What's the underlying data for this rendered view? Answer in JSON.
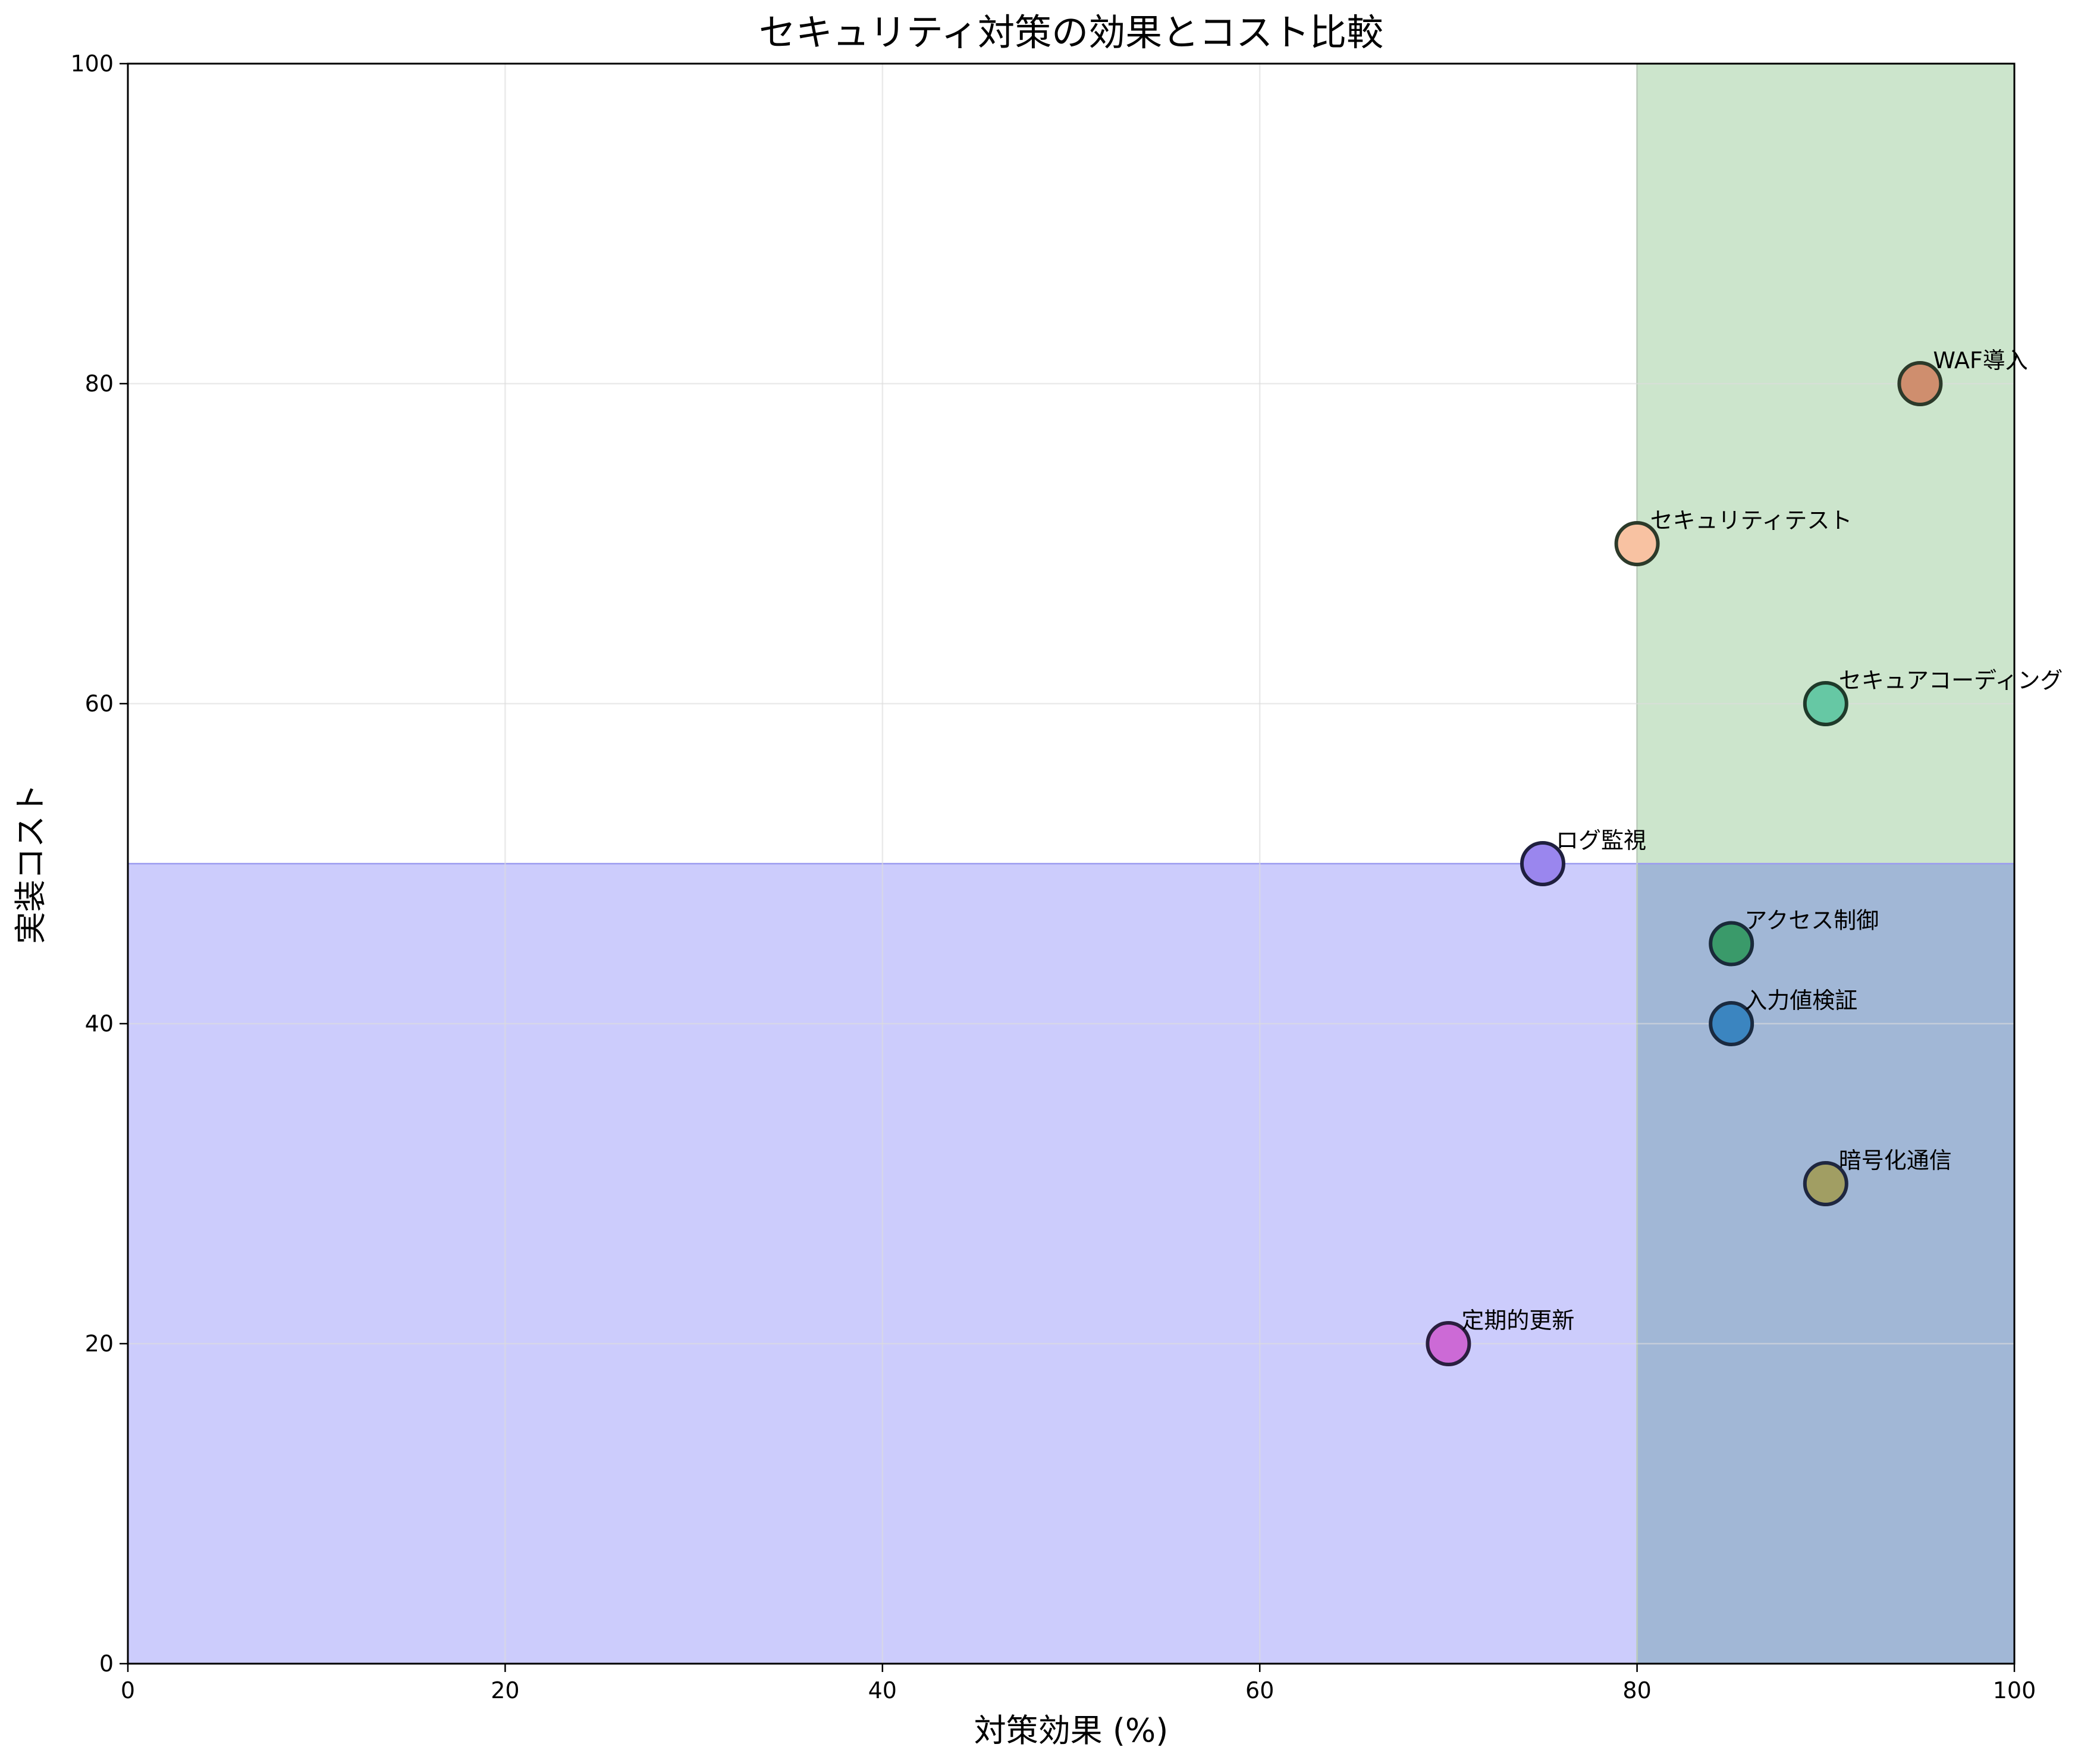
{
  "chart_data": {
    "type": "scatter",
    "title": "セキュリティ対策の効果とコスト比較",
    "xlabel": "対策効果 (%)",
    "ylabel": "実装コスト",
    "xlim": [
      0,
      100
    ],
    "ylim": [
      0,
      100
    ],
    "xticks": [
      0,
      20,
      40,
      60,
      80,
      100
    ],
    "yticks": [
      0,
      20,
      40,
      60,
      80,
      100
    ],
    "grid": true,
    "regions": [
      {
        "x": [
          80,
          100
        ],
        "y": [
          0,
          100
        ],
        "color": "#cce5cc"
      },
      {
        "x": [
          0,
          100
        ],
        "y": [
          0,
          50
        ],
        "color": "#ccccfc",
        "overlap_color": "#a1b7d6"
      }
    ],
    "points": [
      {
        "label": "入力値検証",
        "x": 85,
        "y": 40,
        "color": "#3b85c0",
        "edge": "#1a2a40"
      },
      {
        "label": "WAF導入",
        "x": 95,
        "y": 80,
        "color": "#cf8e6e",
        "edge": "#2c3a2a"
      },
      {
        "label": "暗号化通信",
        "x": 90,
        "y": 30,
        "color": "#a19e63",
        "edge": "#1f2740"
      },
      {
        "label": "アクセス制御",
        "x": 85,
        "y": 45,
        "color": "#3a9a6a",
        "edge": "#1a2a3a"
      },
      {
        "label": "ログ監視",
        "x": 75,
        "y": 50,
        "color": "#9a86ee",
        "edge": "#1f1f3f"
      },
      {
        "label": "定期的更新",
        "x": 70,
        "y": 20,
        "color": "#cc6ad6",
        "edge": "#2a1f3f"
      },
      {
        "label": "セキュアコーディング",
        "x": 90,
        "y": 60,
        "color": "#66c8a4",
        "edge": "#1f3a2a"
      },
      {
        "label": "セキュリティテスト",
        "x": 80,
        "y": 70,
        "color": "#f8c2a2",
        "edge": "#2c3a2a"
      }
    ]
  }
}
